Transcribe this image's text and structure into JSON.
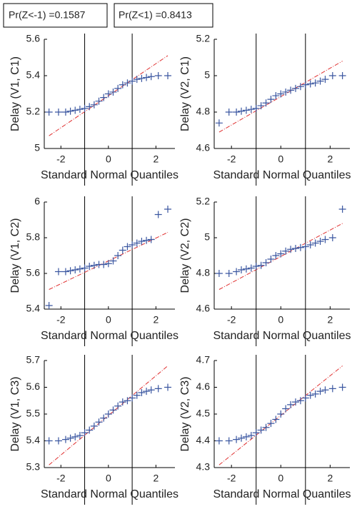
{
  "annotations": [
    "Pr(Z<-1) =0.1587",
    "Pr(Z<1) =0.8413"
  ],
  "chart_data": [
    {
      "type": "scatter",
      "xlabel": "Standard Normal Quantiles",
      "ylabel": "Delay (V1, C1)",
      "x": [
        -2.5,
        -2.1,
        -1.8,
        -1.6,
        -1.4,
        -1.2,
        -1.0,
        -0.8,
        -0.6,
        -0.4,
        -0.2,
        0,
        0.2,
        0.4,
        0.6,
        0.8,
        1.0,
        1.2,
        1.4,
        1.6,
        1.8,
        2.1,
        2.5
      ],
      "values": [
        5.2,
        5.2,
        5.2,
        5.205,
        5.21,
        5.215,
        5.22,
        5.23,
        5.24,
        5.26,
        5.28,
        5.3,
        5.31,
        5.33,
        5.35,
        5.36,
        5.37,
        5.38,
        5.385,
        5.39,
        5.395,
        5.4,
        5.4
      ],
      "color": "#3a56a0",
      "ref_line": {
        "x": [
          -2.5,
          2.5
        ],
        "values": [
          5.07,
          5.51
        ],
        "color": "#e03030"
      },
      "vlines": [
        -1,
        1
      ],
      "xlim": [
        -2.7,
        2.8
      ],
      "xticks": [
        -2,
        0,
        2
      ],
      "ylim": [
        5,
        5.6
      ],
      "yticks": [
        5,
        5.2,
        5.4,
        5.6
      ]
    },
    {
      "type": "scatter",
      "xlabel": "Standard Normal Quantiles",
      "ylabel": "Delay (V2, C1)",
      "x": [
        -2.5,
        -2.1,
        -1.8,
        -1.6,
        -1.4,
        -1.2,
        -1.0,
        -0.8,
        -0.6,
        -0.4,
        -0.2,
        0,
        0.2,
        0.4,
        0.6,
        0.8,
        1.0,
        1.2,
        1.4,
        1.6,
        1.8,
        2.1,
        2.5
      ],
      "values": [
        4.74,
        4.8,
        4.8,
        4.805,
        4.81,
        4.815,
        4.82,
        4.835,
        4.85,
        4.87,
        4.89,
        4.9,
        4.91,
        4.92,
        4.93,
        4.94,
        4.95,
        4.955,
        4.96,
        4.97,
        4.98,
        5.0,
        5.0
      ],
      "color": "#3a56a0",
      "ref_line": {
        "x": [
          -2.5,
          2.5
        ],
        "values": [
          4.69,
          5.08
        ],
        "color": "#e03030"
      },
      "vlines": [
        -1,
        1
      ],
      "xlim": [
        -2.7,
        2.8
      ],
      "xticks": [
        -2,
        0,
        2
      ],
      "ylim": [
        4.6,
        5.2
      ],
      "yticks": [
        4.6,
        4.8,
        5,
        5.2
      ]
    },
    {
      "type": "scatter",
      "xlabel": "Standard Normal Quantiles",
      "ylabel": "Delay (V1, C2)",
      "x": [
        -2.5,
        -2.1,
        -1.8,
        -1.6,
        -1.4,
        -1.2,
        -1.0,
        -0.8,
        -0.6,
        -0.4,
        -0.2,
        0,
        0.2,
        0.4,
        0.6,
        0.8,
        1.0,
        1.2,
        1.4,
        1.6,
        1.8,
        2.1,
        2.5
      ],
      "values": [
        5.42,
        5.61,
        5.61,
        5.615,
        5.62,
        5.625,
        5.63,
        5.64,
        5.645,
        5.65,
        5.65,
        5.655,
        5.67,
        5.7,
        5.73,
        5.75,
        5.76,
        5.77,
        5.78,
        5.785,
        5.79,
        5.93,
        5.96
      ],
      "color": "#3a56a0",
      "ref_line": {
        "x": [
          -2.5,
          2.5
        ],
        "values": [
          5.51,
          5.83
        ],
        "color": "#e03030"
      },
      "vlines": [
        -1,
        1
      ],
      "xlim": [
        -2.7,
        2.8
      ],
      "xticks": [
        -2,
        0,
        2
      ],
      "ylim": [
        5.4,
        6
      ],
      "yticks": [
        5.4,
        5.6,
        5.8,
        6
      ]
    },
    {
      "type": "scatter",
      "xlabel": "Standard Normal Quantiles",
      "ylabel": "Delay (V2, C2)",
      "x": [
        -2.5,
        -2.1,
        -1.8,
        -1.6,
        -1.4,
        -1.2,
        -1.0,
        -0.8,
        -0.6,
        -0.4,
        -0.2,
        0,
        0.2,
        0.4,
        0.6,
        0.8,
        1.0,
        1.2,
        1.4,
        1.6,
        1.8,
        2.1,
        2.5
      ],
      "values": [
        4.8,
        4.8,
        4.81,
        4.82,
        4.825,
        4.83,
        4.84,
        4.845,
        4.86,
        4.88,
        4.9,
        4.91,
        4.925,
        4.935,
        4.94,
        4.945,
        4.95,
        4.96,
        4.97,
        4.98,
        4.99,
        5.0,
        5.16
      ],
      "color": "#3a56a0",
      "ref_line": {
        "x": [
          -2.5,
          2.5
        ],
        "values": [
          4.71,
          5.08
        ],
        "color": "#e03030"
      },
      "vlines": [
        -1,
        1
      ],
      "xlim": [
        -2.7,
        2.8
      ],
      "xticks": [
        -2,
        0,
        2
      ],
      "ylim": [
        4.6,
        5.2
      ],
      "yticks": [
        4.6,
        4.8,
        5,
        5.2
      ]
    },
    {
      "type": "scatter",
      "xlabel": "Standard Normal Quantiles",
      "ylabel": "Delay (V1, C3)",
      "x": [
        -2.5,
        -2.1,
        -1.8,
        -1.6,
        -1.4,
        -1.2,
        -1.0,
        -0.8,
        -0.6,
        -0.4,
        -0.2,
        0,
        0.2,
        0.4,
        0.6,
        0.8,
        1.0,
        1.2,
        1.4,
        1.6,
        1.8,
        2.1,
        2.5
      ],
      "values": [
        5.4,
        5.4,
        5.405,
        5.41,
        5.415,
        5.42,
        5.43,
        5.44,
        5.455,
        5.47,
        5.485,
        5.5,
        5.515,
        5.53,
        5.545,
        5.55,
        5.56,
        5.57,
        5.58,
        5.585,
        5.59,
        5.595,
        5.6
      ],
      "color": "#3a56a0",
      "ref_line": {
        "x": [
          -2.5,
          2.5
        ],
        "values": [
          5.31,
          5.68
        ],
        "color": "#e03030"
      },
      "vlines": [
        -1,
        1
      ],
      "xlim": [
        -2.7,
        2.8
      ],
      "xticks": [
        -2,
        0,
        2
      ],
      "ylim": [
        5.3,
        5.7
      ],
      "yticks": [
        5.3,
        5.4,
        5.5,
        5.6,
        5.7
      ]
    },
    {
      "type": "scatter",
      "xlabel": "Standard Normal Quantiles",
      "ylabel": "Delay (V2, C3)",
      "x": [
        -2.5,
        -2.1,
        -1.8,
        -1.6,
        -1.4,
        -1.2,
        -1.0,
        -0.8,
        -0.6,
        -0.4,
        -0.2,
        0,
        0.2,
        0.4,
        0.6,
        0.8,
        1.0,
        1.2,
        1.4,
        1.6,
        1.8,
        2.1,
        2.5
      ],
      "values": [
        4.4,
        4.4,
        4.405,
        4.41,
        4.415,
        4.42,
        4.43,
        4.44,
        4.45,
        4.465,
        4.48,
        4.5,
        4.52,
        4.535,
        4.545,
        4.55,
        4.56,
        4.57,
        4.575,
        4.585,
        4.59,
        4.595,
        4.6
      ],
      "color": "#3a56a0",
      "ref_line": {
        "x": [
          -2.5,
          2.5
        ],
        "values": [
          4.31,
          4.68
        ],
        "color": "#e03030"
      },
      "vlines": [
        -1,
        1
      ],
      "xlim": [
        -2.7,
        2.8
      ],
      "xticks": [
        -2,
        0,
        2
      ],
      "ylim": [
        4.3,
        4.7
      ],
      "yticks": [
        4.3,
        4.4,
        4.5,
        4.6,
        4.7
      ]
    }
  ]
}
